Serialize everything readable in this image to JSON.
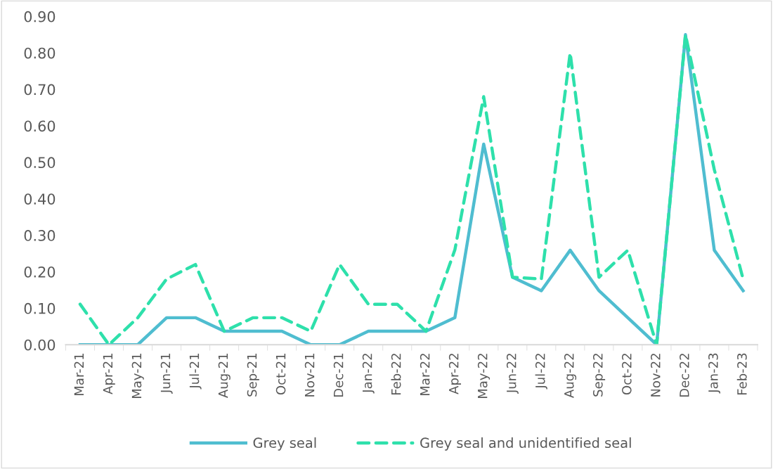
{
  "chart_data": {
    "type": "line",
    "categories": [
      "Mar-21",
      "Apr-21",
      "May-21",
      "Jun-21",
      "Jul-21",
      "Aug-21",
      "Sep-21",
      "Oct-21",
      "Nov-21",
      "Dec-21",
      "Jan-22",
      "Feb-22",
      "Mar-22",
      "Apr-22",
      "May-22",
      "Jun-22",
      "Jul-22",
      "Aug-22",
      "Sep-22",
      "Oct-22",
      "Nov-22",
      "Dec-22",
      "Jan-23",
      "Feb-23"
    ],
    "series": [
      {
        "name": "Grey seal",
        "color": "#4fbdd0",
        "line_style": "solid",
        "values": [
          0,
          0,
          0,
          0.074,
          0.074,
          0.037,
          0.037,
          0.037,
          0,
          0,
          0.037,
          0.037,
          0.037,
          0.074,
          0.55,
          0.185,
          0.148,
          0.259,
          0.148,
          0.074,
          0,
          0.85,
          0.259,
          0.148
        ]
      },
      {
        "name": "Grey seal and unidentified seal",
        "color": "#2ee0ab",
        "line_style": "dashed",
        "values": [
          0.111,
          0,
          0.074,
          0.18,
          0.22,
          0.037,
          0.074,
          0.074,
          0.037,
          0.22,
          0.111,
          0.111,
          0.037,
          0.26,
          0.68,
          0.185,
          0.18,
          0.8,
          0.185,
          0.259,
          0,
          0.85,
          0.48,
          0.18
        ]
      }
    ],
    "ylim": [
      0,
      0.9
    ],
    "yticks": [
      {
        "value": 0,
        "label": "0.00"
      },
      {
        "value": 0.1,
        "label": "0.10"
      },
      {
        "value": 0.2,
        "label": "0.20"
      },
      {
        "value": 0.3,
        "label": "0.30"
      },
      {
        "value": 0.4,
        "label": "0.40"
      },
      {
        "value": 0.5,
        "label": "0.50"
      },
      {
        "value": 0.6,
        "label": "0.60"
      },
      {
        "value": 0.7,
        "label": "0.70"
      },
      {
        "value": 0.8,
        "label": "0.80"
      },
      {
        "value": 0.9,
        "label": "0.90"
      }
    ],
    "grid": false,
    "legend": "bottom",
    "marker": "none"
  }
}
